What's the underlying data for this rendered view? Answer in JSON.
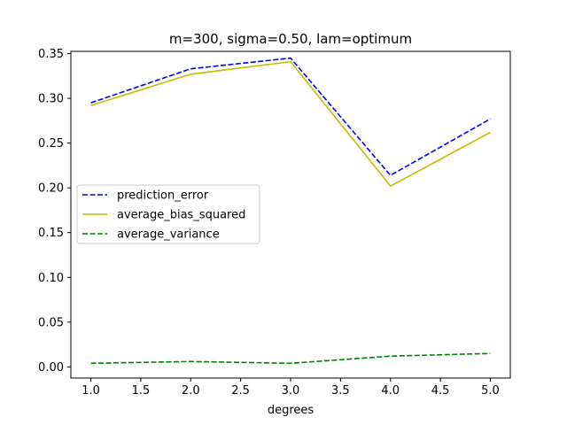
{
  "chart_data": {
    "type": "line",
    "title": "m=300, sigma=0.50, lam=optimum",
    "xlabel": "degrees",
    "ylabel": "",
    "xlim": [
      0.8,
      5.2
    ],
    "ylim": [
      -0.0125,
      0.3525
    ],
    "xticks": [
      1.0,
      1.5,
      2.0,
      2.5,
      3.0,
      3.5,
      4.0,
      4.5,
      5.0
    ],
    "xtick_labels": [
      "1.0",
      "1.5",
      "2.0",
      "2.5",
      "3.0",
      "3.5",
      "4.0",
      "4.5",
      "5.0"
    ],
    "yticks": [
      0.0,
      0.05,
      0.1,
      0.15,
      0.2,
      0.25,
      0.3,
      0.35
    ],
    "ytick_labels": [
      "0.00",
      "0.05",
      "0.10",
      "0.15",
      "0.20",
      "0.25",
      "0.30",
      "0.35"
    ],
    "grid": false,
    "legend_position": "center-left",
    "x": [
      1,
      2,
      3,
      4,
      5
    ],
    "series": [
      {
        "name": "prediction_error",
        "values": [
          0.295,
          0.333,
          0.345,
          0.214,
          0.277
        ],
        "color": "#0000ff",
        "dash": "dashed"
      },
      {
        "name": "average_bias_squared",
        "values": [
          0.292,
          0.327,
          0.341,
          0.202,
          0.262
        ],
        "color": "#bfbf00",
        "dash": "solid"
      },
      {
        "name": "average_variance",
        "values": [
          0.004,
          0.006,
          0.004,
          0.012,
          0.015
        ],
        "color": "#008000",
        "dash": "dashed"
      }
    ]
  }
}
